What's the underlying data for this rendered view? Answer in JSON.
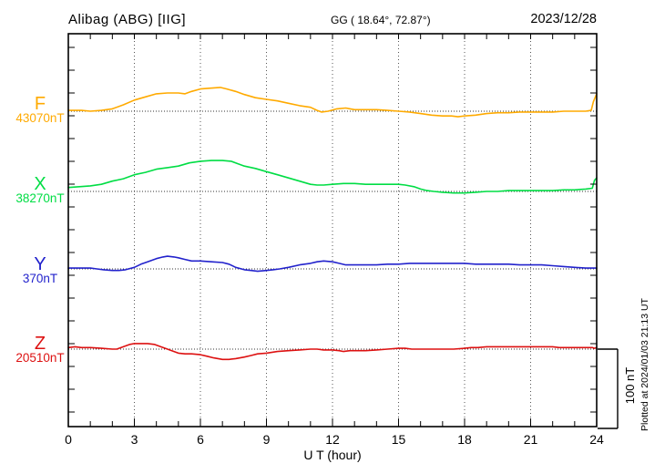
{
  "header": {
    "station": "Alibag (ABG)  [IIG]",
    "geo_coords": "GG ( 18.64°,  72.87°)",
    "date": "2023/12/28"
  },
  "footer": {
    "xaxis_label": "U T (hour)",
    "plotted_note": "Plotted at 2024/01/03 21:13 UT"
  },
  "scale_bar": {
    "label": "100 nT",
    "value_nT": 100
  },
  "chart_data": {
    "type": "line",
    "title": "Alibag (ABG) [IIG] magnetogram, 2023/12/28",
    "xlabel": "U T (hour)",
    "x_range": [
      0,
      24
    ],
    "x_major_ticks": [
      0,
      3,
      6,
      9,
      12,
      15,
      18,
      21,
      24
    ],
    "x_minor_step_hours": 1,
    "grid": "dotted vertical lines every 3 h; dotted horizontal baseline per component",
    "legend_position": "left margin, one colored label per trace",
    "y_scale_reference": "vertical bar at right = 100 nT",
    "series": [
      {
        "name": "F",
        "baseline_label": "43070nT",
        "baseline_nT": 43070,
        "color": "#FFAA00",
        "units": "nT deviation from baseline",
        "points_hour_nT": [
          [
            0,
            1
          ],
          [
            0.6,
            1
          ],
          [
            1,
            0
          ],
          [
            1.5,
            1
          ],
          [
            2,
            3
          ],
          [
            2.5,
            8
          ],
          [
            3,
            14
          ],
          [
            3.5,
            18
          ],
          [
            4,
            22
          ],
          [
            4.5,
            23
          ],
          [
            5,
            23
          ],
          [
            5.3,
            22
          ],
          [
            5.6,
            25
          ],
          [
            6,
            28
          ],
          [
            6.4,
            29
          ],
          [
            6.9,
            30
          ],
          [
            7.2,
            28
          ],
          [
            7.6,
            25
          ],
          [
            8,
            21
          ],
          [
            8.5,
            17
          ],
          [
            9,
            15
          ],
          [
            9.5,
            13
          ],
          [
            10,
            10
          ],
          [
            10.5,
            7
          ],
          [
            11,
            5
          ],
          [
            11.3,
            1
          ],
          [
            11.5,
            -1
          ],
          [
            11.8,
            0
          ],
          [
            12.2,
            3
          ],
          [
            12.6,
            4
          ],
          [
            13,
            2
          ],
          [
            13.5,
            2
          ],
          [
            14,
            2
          ],
          [
            14.5,
            1
          ],
          [
            15,
            0
          ],
          [
            15.5,
            -1
          ],
          [
            16,
            -3
          ],
          [
            16.5,
            -5
          ],
          [
            17,
            -6
          ],
          [
            17.4,
            -6
          ],
          [
            17.7,
            -7
          ],
          [
            18,
            -6
          ],
          [
            18.5,
            -5
          ],
          [
            19,
            -3
          ],
          [
            19.5,
            -2
          ],
          [
            20,
            -2
          ],
          [
            20.5,
            -1
          ],
          [
            21,
            -1
          ],
          [
            21.5,
            -1
          ],
          [
            22,
            -1
          ],
          [
            22.5,
            0
          ],
          [
            23,
            0
          ],
          [
            23.5,
            0
          ],
          [
            23.75,
            1
          ],
          [
            23.85,
            12
          ],
          [
            24,
            22
          ]
        ]
      },
      {
        "name": "X",
        "baseline_label": "38270nT",
        "baseline_nT": 38270,
        "color": "#00DD44",
        "units": "nT deviation from baseline",
        "points_hour_nT": [
          [
            0,
            5
          ],
          [
            0.5,
            6
          ],
          [
            1,
            7
          ],
          [
            1.5,
            9
          ],
          [
            2,
            13
          ],
          [
            2.5,
            16
          ],
          [
            3,
            21
          ],
          [
            3.5,
            24
          ],
          [
            4,
            28
          ],
          [
            4.5,
            30
          ],
          [
            5,
            32
          ],
          [
            5.5,
            36
          ],
          [
            6,
            38
          ],
          [
            6.5,
            39
          ],
          [
            7,
            39
          ],
          [
            7.4,
            38
          ],
          [
            7.7,
            35
          ],
          [
            8,
            32
          ],
          [
            8.5,
            29
          ],
          [
            9,
            25
          ],
          [
            9.5,
            21
          ],
          [
            10,
            17
          ],
          [
            10.5,
            13
          ],
          [
            11,
            9
          ],
          [
            11.3,
            8
          ],
          [
            11.6,
            8
          ],
          [
            12,
            9
          ],
          [
            12.5,
            10
          ],
          [
            13,
            10
          ],
          [
            13.5,
            9
          ],
          [
            14,
            9
          ],
          [
            14.5,
            9
          ],
          [
            15,
            9
          ],
          [
            15.3,
            8
          ],
          [
            15.7,
            6
          ],
          [
            16,
            3
          ],
          [
            16.3,
            1
          ],
          [
            16.6,
            0
          ],
          [
            17,
            -1
          ],
          [
            17.5,
            -2
          ],
          [
            18,
            -2
          ],
          [
            18.5,
            -1
          ],
          [
            19,
            0
          ],
          [
            19.5,
            0
          ],
          [
            20,
            1
          ],
          [
            20.5,
            1
          ],
          [
            21,
            1
          ],
          [
            21.5,
            1
          ],
          [
            22,
            1
          ],
          [
            22.5,
            2
          ],
          [
            23,
            2
          ],
          [
            23.5,
            3
          ],
          [
            23.8,
            4
          ],
          [
            23.9,
            14
          ],
          [
            24,
            17
          ]
        ]
      },
      {
        "name": "Y",
        "baseline_label": "370nT",
        "baseline_nT": 370,
        "color": "#2222CC",
        "units": "nT deviation from baseline",
        "points_hour_nT": [
          [
            0,
            1
          ],
          [
            0.5,
            1
          ],
          [
            1,
            1
          ],
          [
            1.3,
            0
          ],
          [
            1.6,
            -1
          ],
          [
            2,
            -2
          ],
          [
            2.3,
            -2
          ],
          [
            2.6,
            -1
          ],
          [
            3,
            2
          ],
          [
            3.3,
            6
          ],
          [
            3.6,
            9
          ],
          [
            4,
            13
          ],
          [
            4.3,
            15
          ],
          [
            4.5,
            16
          ],
          [
            4.8,
            15
          ],
          [
            5,
            14
          ],
          [
            5.3,
            12
          ],
          [
            5.6,
            10
          ],
          [
            6,
            10
          ],
          [
            6.5,
            9
          ],
          [
            7,
            8
          ],
          [
            7.3,
            6
          ],
          [
            7.6,
            2
          ],
          [
            8,
            -1
          ],
          [
            8.3,
            -2
          ],
          [
            8.6,
            -3
          ],
          [
            9,
            -2
          ],
          [
            9.3,
            -1
          ],
          [
            9.6,
            0
          ],
          [
            10,
            2
          ],
          [
            10.5,
            5
          ],
          [
            11,
            7
          ],
          [
            11.3,
            9
          ],
          [
            11.6,
            10
          ],
          [
            12,
            9
          ],
          [
            12.3,
            7
          ],
          [
            12.6,
            5
          ],
          [
            13,
            5
          ],
          [
            13.5,
            5
          ],
          [
            14,
            5
          ],
          [
            14.5,
            6
          ],
          [
            15,
            6
          ],
          [
            15.5,
            7
          ],
          [
            16,
            7
          ],
          [
            16.5,
            7
          ],
          [
            17,
            7
          ],
          [
            17.5,
            7
          ],
          [
            18,
            7
          ],
          [
            18.5,
            6
          ],
          [
            19,
            6
          ],
          [
            19.5,
            6
          ],
          [
            20,
            6
          ],
          [
            20.5,
            5
          ],
          [
            21,
            5
          ],
          [
            21.5,
            5
          ],
          [
            22,
            4
          ],
          [
            22.5,
            3
          ],
          [
            23,
            2
          ],
          [
            23.5,
            1
          ],
          [
            24,
            1
          ]
        ]
      },
      {
        "name": "Z",
        "baseline_label": "20510nT",
        "baseline_nT": 20510,
        "color": "#DD1111",
        "units": "nT deviation from baseline",
        "points_hour_nT": [
          [
            0,
            2
          ],
          [
            0.3,
            3
          ],
          [
            0.6,
            2
          ],
          [
            1,
            2
          ],
          [
            1.5,
            1
          ],
          [
            2,
            0
          ],
          [
            2.2,
            0
          ],
          [
            2.5,
            3
          ],
          [
            2.8,
            6
          ],
          [
            3,
            7
          ],
          [
            3.3,
            7
          ],
          [
            3.6,
            7
          ],
          [
            3.9,
            6
          ],
          [
            4.2,
            3
          ],
          [
            4.5,
            0
          ],
          [
            4.8,
            -3
          ],
          [
            5,
            -5
          ],
          [
            5.3,
            -6
          ],
          [
            5.6,
            -6
          ],
          [
            6,
            -7
          ],
          [
            6.3,
            -9
          ],
          [
            6.6,
            -11
          ],
          [
            7,
            -13
          ],
          [
            7.3,
            -13
          ],
          [
            7.6,
            -12
          ],
          [
            8,
            -10
          ],
          [
            8.3,
            -8
          ],
          [
            8.6,
            -6
          ],
          [
            9,
            -5
          ],
          [
            9.5,
            -3
          ],
          [
            10,
            -2
          ],
          [
            10.5,
            -1
          ],
          [
            11,
            0
          ],
          [
            11.3,
            0
          ],
          [
            11.6,
            -1
          ],
          [
            12,
            -1
          ],
          [
            12.3,
            -2
          ],
          [
            12.5,
            -3
          ],
          [
            12.8,
            -2
          ],
          [
            13,
            -2
          ],
          [
            13.5,
            -2
          ],
          [
            14,
            -1
          ],
          [
            14.5,
            0
          ],
          [
            15,
            1
          ],
          [
            15.3,
            1
          ],
          [
            15.6,
            0
          ],
          [
            16,
            0
          ],
          [
            16.5,
            0
          ],
          [
            17,
            0
          ],
          [
            17.5,
            0
          ],
          [
            18,
            1
          ],
          [
            18.3,
            2
          ],
          [
            18.6,
            2
          ],
          [
            19,
            3
          ],
          [
            19.5,
            3
          ],
          [
            20,
            3
          ],
          [
            20.5,
            3
          ],
          [
            21,
            3
          ],
          [
            21.5,
            3
          ],
          [
            22,
            3
          ],
          [
            22.3,
            2
          ],
          [
            22.6,
            2
          ],
          [
            23,
            2
          ],
          [
            23.5,
            2
          ],
          [
            23.8,
            2
          ],
          [
            23.9,
            1
          ],
          [
            24,
            2
          ]
        ]
      }
    ]
  }
}
